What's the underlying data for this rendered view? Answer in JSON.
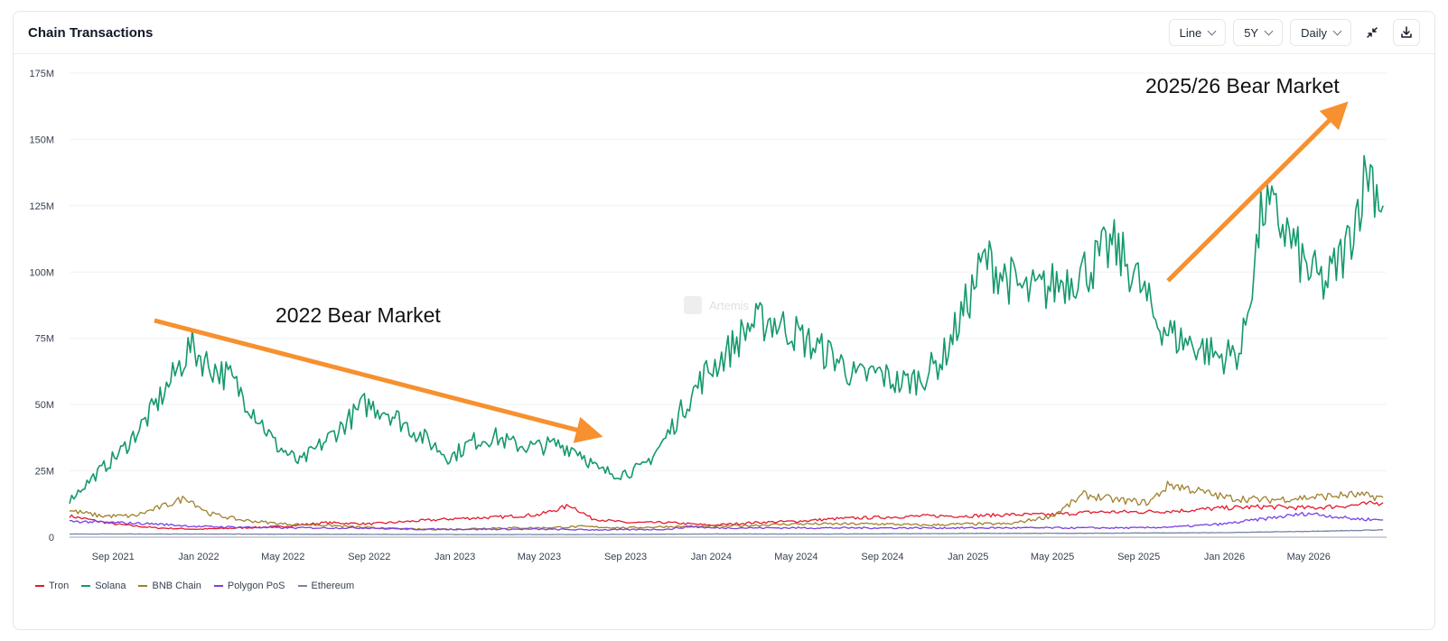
{
  "card": {
    "title": "Chain Transactions"
  },
  "controls": {
    "chart_type": "Line",
    "range": "5Y",
    "interval": "Daily",
    "collapse_icon": "collapse-arrows-icon",
    "download_icon": "download-icon"
  },
  "watermark": {
    "text": "Artemis"
  },
  "annotations": {
    "left": "2022 Bear Market",
    "right": "2025/26 Bear Market",
    "arrow_color": "#f7902f"
  },
  "chart_data": {
    "type": "line",
    "title": "Chain Transactions",
    "xlabel": "",
    "ylabel": "",
    "ylim": [
      0,
      175000000
    ],
    "yticks": [
      0,
      25000000,
      50000000,
      75000000,
      100000000,
      125000000,
      150000000,
      175000000
    ],
    "ytick_labels": [
      "0",
      "25M",
      "50M",
      "75M",
      "100M",
      "125M",
      "150M",
      "175M"
    ],
    "xlim": [
      "2021-07-01",
      "2026-08-20"
    ],
    "xticks": [
      "2021-09-01",
      "2022-01-01",
      "2022-05-01",
      "2022-09-01",
      "2023-01-01",
      "2023-05-01",
      "2023-09-01",
      "2024-01-01",
      "2024-05-01",
      "2024-09-01",
      "2025-01-01",
      "2025-05-01",
      "2025-09-01",
      "2026-01-01",
      "2026-05-01"
    ],
    "xtick_labels": [
      "Sep 2021",
      "Jan 2022",
      "May 2022",
      "Sep 2022",
      "Jan 2023",
      "May 2023",
      "Sep 2023",
      "Jan 2024",
      "May 2024",
      "Sep 2024",
      "Jan 2025",
      "May 2025",
      "Sep 2025",
      "Jan 2026",
      "May 2026"
    ],
    "grid": true,
    "legend_position": "bottom-left",
    "series": [
      {
        "name": "Tron",
        "color": "#e5192c",
        "x": [
          "2021-07-01",
          "2021-09-01",
          "2021-11-01",
          "2022-01-01",
          "2022-03-01",
          "2022-05-01",
          "2022-07-01",
          "2022-09-01",
          "2022-11-01",
          "2023-01-01",
          "2023-03-01",
          "2023-05-01",
          "2023-06-15",
          "2023-07-15",
          "2023-09-01",
          "2023-11-01",
          "2024-01-01",
          "2024-03-01",
          "2024-05-01",
          "2024-07-01",
          "2024-09-01",
          "2024-11-01",
          "2025-01-01",
          "2025-03-01",
          "2025-05-01",
          "2025-07-01",
          "2025-09-01",
          "2025-11-01",
          "2026-01-01",
          "2026-03-01",
          "2026-05-01",
          "2026-07-01",
          "2026-08-15"
        ],
        "values": [
          8000000,
          5000000,
          3500000,
          3000000,
          3500000,
          4000000,
          5500000,
          5000000,
          6000000,
          7000000,
          7500000,
          8500000,
          12000000,
          7000000,
          5500000,
          5500000,
          4500000,
          5500000,
          6000000,
          7000000,
          7500000,
          8000000,
          8000000,
          8500000,
          8500000,
          9500000,
          9500000,
          10000000,
          11000000,
          11500000,
          11000000,
          12000000,
          13000000
        ]
      },
      {
        "name": "Solana",
        "color": "#14996b",
        "x": [
          "2021-07-01",
          "2021-08-01",
          "2021-09-15",
          "2021-10-20",
          "2021-11-25",
          "2021-12-20",
          "2022-01-15",
          "2022-02-15",
          "2022-03-20",
          "2022-04-20",
          "2022-05-25",
          "2022-06-25",
          "2022-07-25",
          "2022-08-25",
          "2022-09-25",
          "2022-10-25",
          "2022-11-25",
          "2022-12-25",
          "2023-01-25",
          "2023-02-25",
          "2023-03-25",
          "2023-04-25",
          "2023-05-25",
          "2023-06-25",
          "2023-07-25",
          "2023-08-25",
          "2023-09-25",
          "2023-10-25",
          "2023-11-25",
          "2023-12-25",
          "2024-01-25",
          "2024-02-25",
          "2024-03-25",
          "2024-04-25",
          "2024-05-25",
          "2024-06-25",
          "2024-07-25",
          "2024-08-25",
          "2024-09-25",
          "2024-10-25",
          "2024-11-25",
          "2024-12-25",
          "2025-01-25",
          "2025-02-25",
          "2025-03-25",
          "2025-04-25",
          "2025-05-25",
          "2025-06-25",
          "2025-07-25",
          "2025-08-25",
          "2025-09-25",
          "2025-10-25",
          "2025-11-25",
          "2025-12-25",
          "2026-01-25",
          "2026-02-25",
          "2026-03-25",
          "2026-04-25",
          "2026-05-25",
          "2026-06-25",
          "2026-07-25",
          "2026-08-15"
        ],
        "values": [
          14000000,
          22000000,
          33000000,
          45000000,
          60000000,
          72000000,
          65000000,
          60000000,
          48000000,
          35000000,
          28000000,
          35000000,
          42000000,
          50000000,
          48000000,
          42000000,
          36000000,
          30000000,
          36000000,
          38000000,
          35000000,
          34000000,
          35000000,
          33000000,
          25000000,
          24000000,
          26000000,
          36000000,
          50000000,
          62000000,
          70000000,
          80000000,
          82000000,
          78000000,
          72000000,
          68000000,
          60000000,
          62000000,
          58000000,
          60000000,
          67000000,
          85000000,
          105000000,
          98000000,
          92000000,
          94000000,
          98000000,
          102000000,
          110000000,
          100000000,
          82000000,
          75000000,
          72000000,
          68000000,
          70000000,
          125000000,
          118000000,
          102000000,
          95000000,
          110000000,
          140000000,
          125000000
        ]
      },
      {
        "name": "BNB Chain",
        "color": "#a0802e",
        "x": [
          "2021-07-01",
          "2021-08-15",
          "2021-10-01",
          "2021-11-15",
          "2021-12-15",
          "2022-01-15",
          "2022-03-01",
          "2022-05-01",
          "2022-07-01",
          "2022-09-01",
          "2022-11-01",
          "2023-01-01",
          "2023-03-01",
          "2023-05-01",
          "2023-07-01",
          "2023-09-01",
          "2023-11-01",
          "2024-01-01",
          "2024-03-01",
          "2024-05-01",
          "2024-07-01",
          "2024-09-01",
          "2024-11-01",
          "2025-01-01",
          "2025-03-01",
          "2025-05-01",
          "2025-06-15",
          "2025-08-01",
          "2025-09-15",
          "2025-10-15",
          "2025-12-01",
          "2026-01-01",
          "2026-03-01",
          "2026-05-01",
          "2026-07-01",
          "2026-08-15"
        ],
        "values": [
          10000000,
          8000000,
          8000000,
          12000000,
          15000000,
          9000000,
          6500000,
          5000000,
          4500000,
          3500000,
          3000000,
          3000000,
          3500000,
          3500000,
          4000000,
          3500000,
          4000000,
          4000000,
          4500000,
          5000000,
          5000000,
          5000000,
          4500000,
          5000000,
          5000000,
          8000000,
          16000000,
          14000000,
          13000000,
          20000000,
          17000000,
          15000000,
          14000000,
          15000000,
          16000000,
          15000000
        ]
      },
      {
        "name": "Polygon PoS",
        "color": "#7b3fe4",
        "x": [
          "2021-07-01",
          "2021-09-01",
          "2021-11-01",
          "2022-01-01",
          "2022-03-01",
          "2022-05-01",
          "2022-07-01",
          "2022-09-01",
          "2022-11-01",
          "2023-01-01",
          "2023-03-01",
          "2023-05-01",
          "2023-07-01",
          "2023-09-01",
          "2023-11-01",
          "2023-12-01",
          "2024-01-01",
          "2024-03-01",
          "2024-05-01",
          "2024-07-01",
          "2024-09-01",
          "2024-11-01",
          "2025-01-01",
          "2025-03-01",
          "2025-05-01",
          "2025-07-01",
          "2025-09-01",
          "2025-11-01",
          "2026-01-01",
          "2026-03-01",
          "2026-05-01",
          "2026-07-01",
          "2026-08-15"
        ],
        "values": [
          6000000,
          5500000,
          5000000,
          4000000,
          3800000,
          3500000,
          3500000,
          3500000,
          3000000,
          3000000,
          3000000,
          3000000,
          2800000,
          2800000,
          3000000,
          4000000,
          3500000,
          3500000,
          3500000,
          3500000,
          3500000,
          3500000,
          3500000,
          3500000,
          3500000,
          3500000,
          3500000,
          4000000,
          5000000,
          7000000,
          9000000,
          7000000,
          6500000
        ]
      },
      {
        "name": "Ethereum",
        "color": "#7485a6",
        "x": [
          "2021-07-01",
          "2022-01-01",
          "2022-07-01",
          "2023-01-01",
          "2023-07-01",
          "2024-01-01",
          "2024-07-01",
          "2025-01-01",
          "2025-07-01",
          "2026-01-01",
          "2026-07-01",
          "2026-08-15"
        ],
        "values": [
          1200000,
          1200000,
          1100000,
          1000000,
          1000000,
          1200000,
          1200000,
          1400000,
          1500000,
          1700000,
          2500000,
          2800000
        ]
      }
    ]
  },
  "legend": {
    "items": [
      {
        "label": "Tron",
        "color": "#e5192c"
      },
      {
        "label": "Solana",
        "color": "#14996b"
      },
      {
        "label": "BNB Chain",
        "color": "#a0802e"
      },
      {
        "label": "Polygon PoS",
        "color": "#7b3fe4"
      },
      {
        "label": "Ethereum",
        "color": "#7485a6"
      }
    ]
  }
}
